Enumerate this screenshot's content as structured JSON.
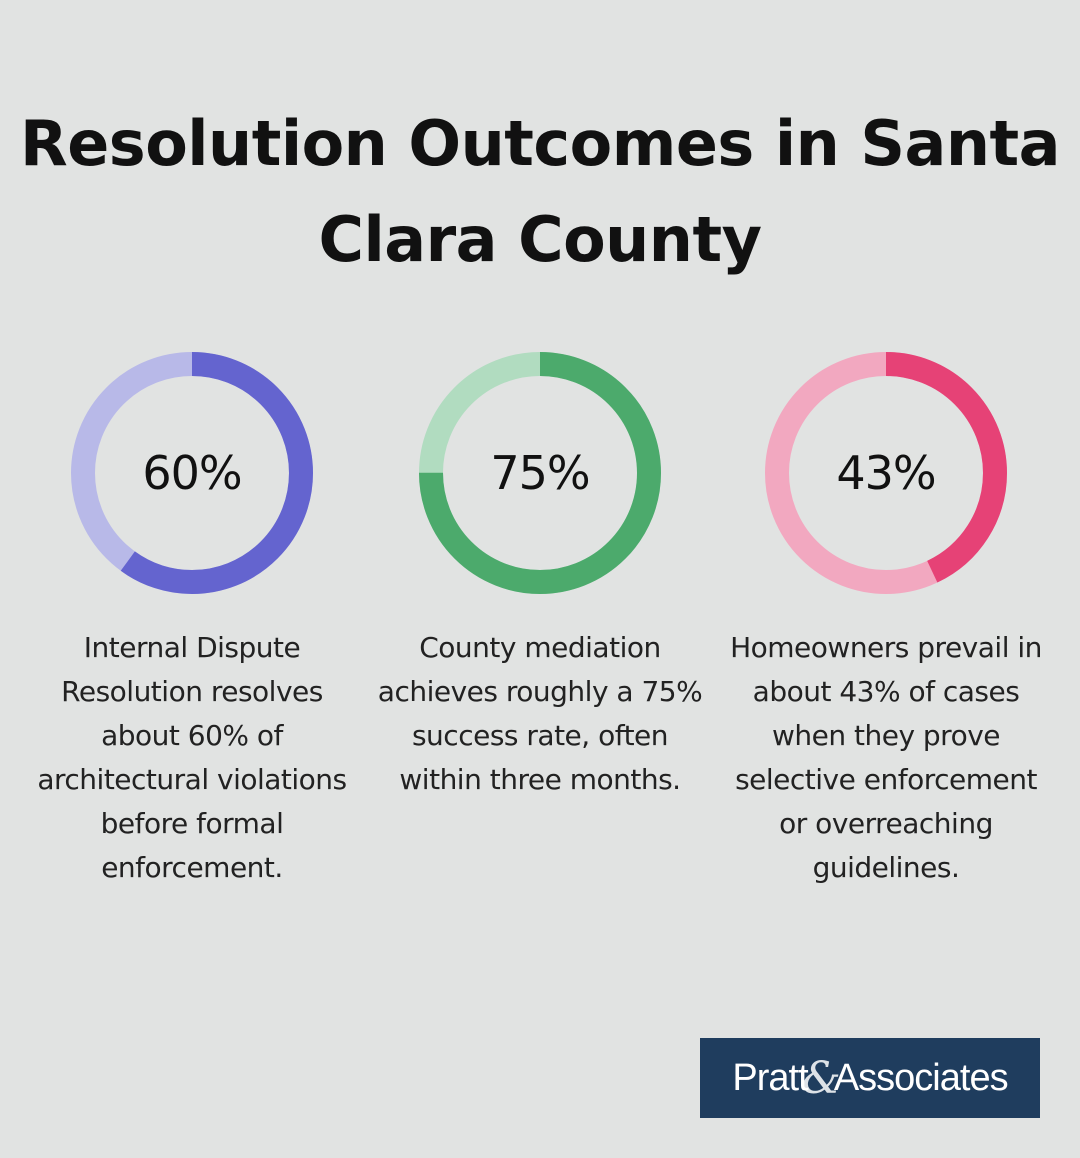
{
  "title": "Resolution Outcomes in Santa Clara County",
  "chart_data": [
    {
      "type": "pie",
      "value_label": "60%",
      "percent": 60,
      "description": "Internal Dispute Resolution resolves about 60% of architectural violations before formal enforcement.",
      "colors": {
        "filled": "#6464cf",
        "track": "#b8b9e8"
      }
    },
    {
      "type": "pie",
      "value_label": "75%",
      "percent": 75,
      "description": "County mediation achieves roughly a 75% success rate, often within three months.",
      "colors": {
        "filled": "#4caa6c",
        "track": "#b1dcc0"
      }
    },
    {
      "type": "pie",
      "value_label": "43%",
      "percent": 43,
      "description": "Homeowners prevail in about 43% of cases when they prove selective enforcement or overreaching guidelines.",
      "colors": {
        "filled": "#e64276",
        "track": "#f2a8c0"
      }
    }
  ],
  "logo": {
    "left": "Pratt",
    "amp": "&",
    "right": "Associates",
    "background": "#1f3d5e"
  }
}
